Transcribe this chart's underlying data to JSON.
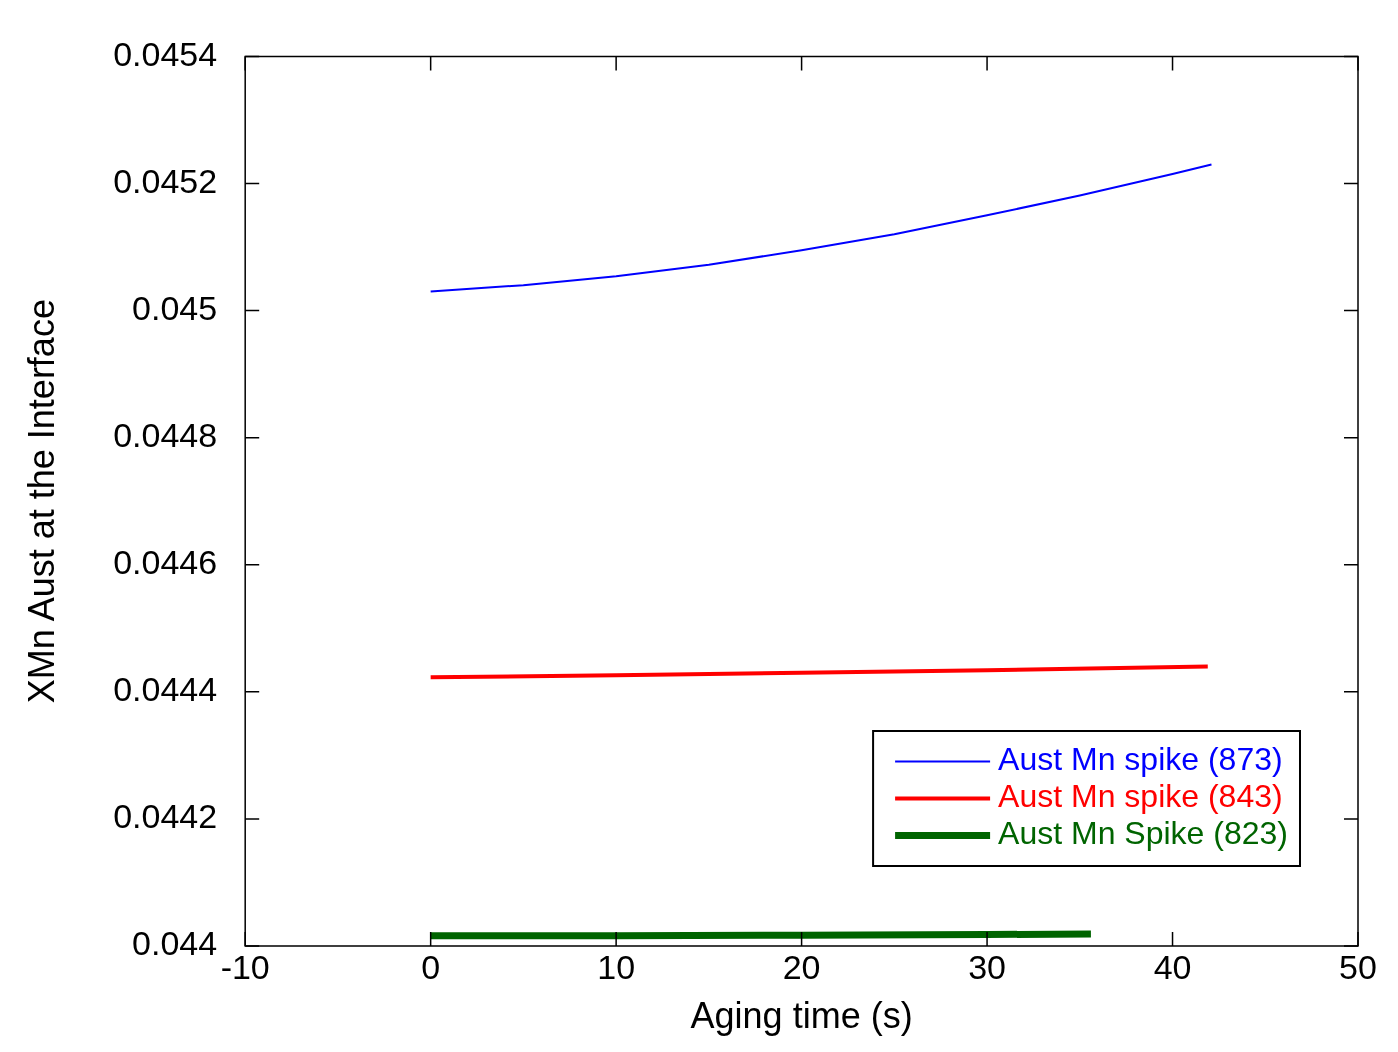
{
  "chart_data": {
    "type": "line",
    "xlabel": "Aging time (s)",
    "ylabel": "XMn Aust at the Interface",
    "xlim": [
      -10,
      50
    ],
    "xticks": [
      -10,
      0,
      10,
      20,
      30,
      40,
      50
    ],
    "ylim": [
      0.044,
      0.0454
    ],
    "yticks": [
      0.044,
      0.0442,
      0.0444,
      0.0446,
      0.0448,
      0.045,
      0.0452,
      0.0454
    ],
    "legend": "bottom right",
    "marker": "none",
    "line_style": "solid",
    "series": [
      {
        "name": "Aust Mn spike (873)",
        "color": "#0000ff",
        "x": [
          0,
          5,
          10,
          15,
          20,
          25,
          30,
          35,
          40,
          42.1
        ],
        "values": [
          0.04503,
          0.04504,
          0.045054,
          0.045072,
          0.045095,
          0.04512,
          0.04515,
          0.045181,
          0.045215,
          0.04523
        ]
      },
      {
        "name": "Aust Mn spike (843)",
        "color": "#ff0000",
        "x": [
          0,
          10,
          20,
          30,
          41.9
        ],
        "values": [
          0.044423,
          0.044426,
          0.04443,
          0.044434,
          0.04444
        ]
      },
      {
        "name": "Aust Mn Spike (823)",
        "color": "#006400",
        "x": [
          0,
          10,
          20,
          30,
          35.6
        ],
        "values": [
          0.044016,
          0.044016,
          0.044017,
          0.044018,
          0.044019
        ]
      }
    ]
  }
}
